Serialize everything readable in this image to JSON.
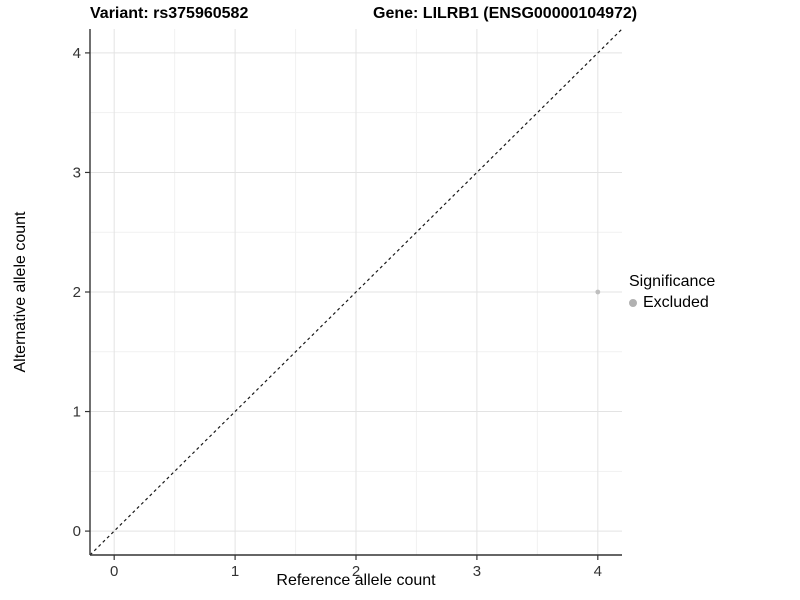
{
  "chart_data": {
    "type": "scatter",
    "title_left": "Variant: rs375960582",
    "title_right": "Gene: LILRB1 (ENSG00000104972)",
    "xlabel": "Reference allele count",
    "ylabel": "Alternative allele count",
    "xlim": [
      -0.2,
      4.2
    ],
    "ylim": [
      -0.2,
      4.2
    ],
    "x_ticks": [
      0,
      1,
      2,
      3,
      4
    ],
    "y_ticks": [
      0,
      1,
      2,
      3,
      4
    ],
    "x_minor": [
      0.5,
      1.5,
      2.5,
      3.5
    ],
    "y_minor": [
      0.5,
      1.5,
      2.5,
      3.5
    ],
    "grid": "major+minor",
    "series": [
      {
        "name": "Excluded",
        "color": "#bfbfbf",
        "points": [
          {
            "x": 4,
            "y": 2
          }
        ]
      }
    ],
    "reference_line": {
      "type": "identity",
      "style": "dashed",
      "color": "#1a1a1a"
    },
    "legend": {
      "title": "Significance",
      "position": "right",
      "entries": [
        {
          "label": "Excluded",
          "color": "#b1b1b1"
        }
      ]
    },
    "style": {
      "grid_major": "#e3e3e3",
      "grid_minor": "#f1f1f1",
      "axis_line": "#333333",
      "tick_label": "#333333",
      "background": "#ffffff"
    }
  }
}
